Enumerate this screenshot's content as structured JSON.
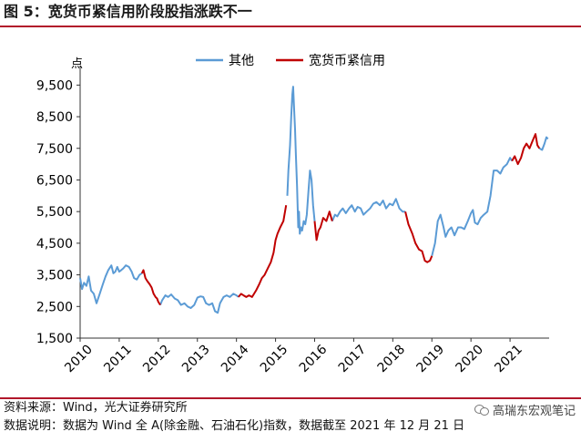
{
  "figure": {
    "title": "图 5：宽货币紧信用阶段股指涨跌不一",
    "source_note": "资料来源：Wind，光大证券研究所",
    "data_note": "数据说明：数据为 Wind 全 A(除金融、石油石化)指数，数据截至 2021 年 12 月 21 日",
    "watermark_text": "高瑞东宏观笔记",
    "watermark_icon": "wechat-icon"
  },
  "chart_data": {
    "type": "line",
    "title": "",
    "ylabel": "点",
    "xlabel": "",
    "ylim": [
      1500,
      10000
    ],
    "yticks": [
      1500,
      2500,
      3500,
      4500,
      5500,
      6500,
      7500,
      8500,
      9500
    ],
    "ytick_labels": [
      "1,500",
      "2,500",
      "3,500",
      "4,500",
      "5,500",
      "6,500",
      "7,500",
      "8,500",
      "9,500"
    ],
    "xlim": [
      2010.0,
      2022.0
    ],
    "xticks": [
      2010,
      2011,
      2012,
      2013,
      2014,
      2015,
      2016,
      2017,
      2018,
      2019,
      2020,
      2021
    ],
    "xtick_labels": [
      "2010",
      "2011",
      "2012",
      "2013",
      "2014",
      "2015",
      "2016",
      "2017",
      "2018",
      "2019",
      "2020",
      "2021"
    ],
    "grid": false,
    "legend_position": "top",
    "legend": [
      "其他",
      "宽货币紧信用"
    ],
    "series": [
      {
        "name": "其他",
        "color": "#5b9bd5",
        "segments": [
          [
            [
              2010.0,
              3400
            ],
            [
              2010.05,
              3050
            ],
            [
              2010.1,
              3250
            ],
            [
              2010.16,
              3150
            ],
            [
              2010.22,
              3450
            ],
            [
              2010.28,
              3000
            ],
            [
              2010.35,
              2900
            ],
            [
              2010.42,
              2600
            ],
            [
              2010.5,
              2900
            ],
            [
              2010.58,
              3200
            ],
            [
              2010.65,
              3450
            ],
            [
              2010.72,
              3650
            ],
            [
              2010.8,
              3800
            ],
            [
              2010.85,
              3550
            ],
            [
              2010.9,
              3600
            ],
            [
              2010.95,
              3750
            ],
            [
              2011.0,
              3600
            ],
            [
              2011.05,
              3650
            ],
            [
              2011.1,
              3700
            ],
            [
              2011.17,
              3800
            ],
            [
              2011.25,
              3750
            ],
            [
              2011.32,
              3600
            ],
            [
              2011.38,
              3400
            ],
            [
              2011.45,
              3350
            ],
            [
              2011.52,
              3500
            ],
            [
              2011.58,
              3550
            ]
          ],
          [
            [
              2012.05,
              2550
            ],
            [
              2012.1,
              2700
            ],
            [
              2012.18,
              2850
            ],
            [
              2012.25,
              2800
            ],
            [
              2012.33,
              2880
            ],
            [
              2012.42,
              2750
            ],
            [
              2012.5,
              2700
            ],
            [
              2012.58,
              2550
            ],
            [
              2012.67,
              2600
            ],
            [
              2012.75,
              2500
            ],
            [
              2012.83,
              2450
            ],
            [
              2012.92,
              2550
            ],
            [
              2013.0,
              2780
            ],
            [
              2013.08,
              2820
            ],
            [
              2013.15,
              2800
            ],
            [
              2013.22,
              2600
            ],
            [
              2013.3,
              2550
            ],
            [
              2013.38,
              2600
            ],
            [
              2013.45,
              2350
            ],
            [
              2013.52,
              2300
            ],
            [
              2013.58,
              2600
            ],
            [
              2013.67,
              2800
            ],
            [
              2013.75,
              2850
            ],
            [
              2013.83,
              2800
            ],
            [
              2013.92,
              2900
            ],
            [
              2014.0,
              2850
            ],
            [
              2014.05,
              2800
            ]
          ],
          [
            [
              2015.3,
              6000
            ],
            [
              2015.33,
              6800
            ],
            [
              2015.37,
              7600
            ],
            [
              2015.4,
              8500
            ],
            [
              2015.43,
              9200
            ],
            [
              2015.45,
              9450
            ],
            [
              2015.48,
              8600
            ],
            [
              2015.5,
              8100
            ],
            [
              2015.52,
              7300
            ],
            [
              2015.55,
              6300
            ],
            [
              2015.58,
              5000
            ],
            [
              2015.6,
              5500
            ],
            [
              2015.62,
              4800
            ],
            [
              2015.65,
              5000
            ],
            [
              2015.68,
              4900
            ],
            [
              2015.72,
              5200
            ],
            [
              2015.76,
              5100
            ],
            [
              2015.8,
              5400
            ],
            [
              2015.84,
              6100
            ],
            [
              2015.88,
              6800
            ],
            [
              2015.92,
              6500
            ],
            [
              2015.96,
              5700
            ],
            [
              2016.0,
              5200
            ]
          ],
          [
            [
              2016.45,
              5200
            ],
            [
              2016.52,
              5400
            ],
            [
              2016.58,
              5350
            ],
            [
              2016.65,
              5500
            ],
            [
              2016.72,
              5600
            ],
            [
              2016.8,
              5450
            ],
            [
              2016.88,
              5600
            ],
            [
              2016.95,
              5700
            ],
            [
              2017.03,
              5500
            ],
            [
              2017.1,
              5650
            ],
            [
              2017.18,
              5600
            ],
            [
              2017.25,
              5400
            ],
            [
              2017.33,
              5500
            ],
            [
              2017.42,
              5600
            ],
            [
              2017.5,
              5750
            ],
            [
              2017.58,
              5800
            ],
            [
              2017.67,
              5700
            ],
            [
              2017.75,
              5850
            ],
            [
              2017.83,
              5600
            ],
            [
              2017.92,
              5750
            ],
            [
              2018.0,
              5700
            ],
            [
              2018.08,
              5900
            ],
            [
              2018.17,
              5600
            ],
            [
              2018.25,
              5500
            ],
            [
              2018.32,
              5500
            ]
          ],
          [
            [
              2019.0,
              4100
            ],
            [
              2019.08,
              4500
            ],
            [
              2019.15,
              5200
            ],
            [
              2019.22,
              5400
            ],
            [
              2019.3,
              5000
            ],
            [
              2019.35,
              4700
            ],
            [
              2019.42,
              4900
            ],
            [
              2019.5,
              5000
            ],
            [
              2019.58,
              4750
            ],
            [
              2019.67,
              5000
            ],
            [
              2019.75,
              5000
            ],
            [
              2019.83,
              4950
            ],
            [
              2019.92,
              5200
            ],
            [
              2020.0,
              5450
            ],
            [
              2020.05,
              5550
            ],
            [
              2020.1,
              5150
            ],
            [
              2020.17,
              5100
            ],
            [
              2020.25,
              5300
            ],
            [
              2020.33,
              5400
            ],
            [
              2020.42,
              5500
            ],
            [
              2020.5,
              6000
            ],
            [
              2020.58,
              6800
            ],
            [
              2020.67,
              6800
            ],
            [
              2020.75,
              6700
            ],
            [
              2020.83,
              6900
            ],
            [
              2020.92,
              7000
            ],
            [
              2021.0,
              7200
            ],
            [
              2021.05,
              7100
            ]
          ],
          [
            [
              2021.75,
              7500
            ],
            [
              2021.82,
              7450
            ],
            [
              2021.88,
              7650
            ],
            [
              2021.93,
              7850
            ],
            [
              2021.97,
              7800
            ]
          ]
        ]
      },
      {
        "name": "宽货币紧信用",
        "color": "#c00000",
        "segments": [
          [
            [
              2011.58,
              3550
            ],
            [
              2011.62,
              3650
            ],
            [
              2011.67,
              3400
            ],
            [
              2011.72,
              3300
            ],
            [
              2011.78,
              3200
            ],
            [
              2011.83,
              3100
            ],
            [
              2011.88,
              2900
            ],
            [
              2011.93,
              2800
            ],
            [
              2011.97,
              2750
            ],
            [
              2012.0,
              2650
            ],
            [
              2012.05,
              2550
            ]
          ],
          [
            [
              2014.05,
              2800
            ],
            [
              2014.12,
              2900
            ],
            [
              2014.18,
              2850
            ],
            [
              2014.25,
              2800
            ],
            [
              2014.32,
              2850
            ],
            [
              2014.4,
              2800
            ],
            [
              2014.5,
              3000
            ],
            [
              2014.58,
              3200
            ],
            [
              2014.65,
              3400
            ],
            [
              2014.72,
              3500
            ],
            [
              2014.8,
              3700
            ],
            [
              2014.88,
              3900
            ],
            [
              2014.95,
              4200
            ],
            [
              2015.0,
              4600
            ],
            [
              2015.05,
              4800
            ],
            [
              2015.12,
              5000
            ],
            [
              2015.2,
              5200
            ],
            [
              2015.27,
              5700
            ]
          ],
          [
            [
              2016.0,
              5200
            ],
            [
              2016.05,
              4600
            ],
            [
              2016.1,
              4900
            ],
            [
              2016.15,
              5000
            ],
            [
              2016.22,
              5300
            ],
            [
              2016.3,
              5200
            ],
            [
              2016.38,
              5500
            ],
            [
              2016.45,
              5200
            ]
          ],
          [
            [
              2018.32,
              5500
            ],
            [
              2018.4,
              5100
            ],
            [
              2018.5,
              4800
            ],
            [
              2018.58,
              4500
            ],
            [
              2018.67,
              4300
            ],
            [
              2018.75,
              4250
            ],
            [
              2018.82,
              3950
            ],
            [
              2018.88,
              3900
            ],
            [
              2018.95,
              3950
            ],
            [
              2019.0,
              4100
            ]
          ],
          [
            [
              2021.05,
              7100
            ],
            [
              2021.12,
              7250
            ],
            [
              2021.2,
              7000
            ],
            [
              2021.28,
              7200
            ],
            [
              2021.35,
              7500
            ],
            [
              2021.42,
              7650
            ],
            [
              2021.5,
              7500
            ],
            [
              2021.58,
              7750
            ],
            [
              2021.65,
              7950
            ],
            [
              2021.7,
              7600
            ],
            [
              2021.75,
              7500
            ]
          ]
        ]
      }
    ]
  }
}
